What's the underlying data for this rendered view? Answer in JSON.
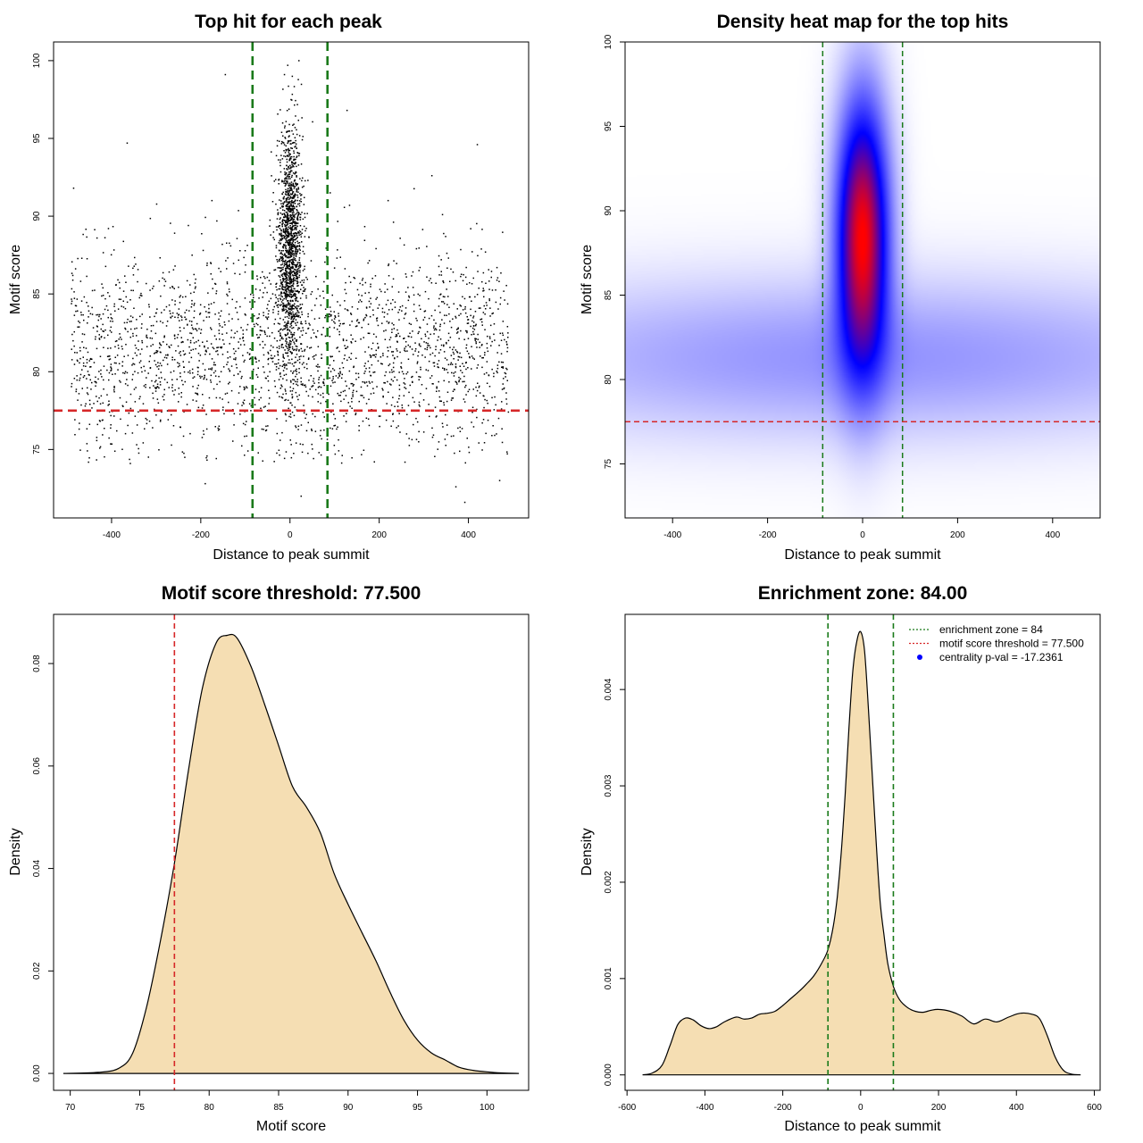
{
  "chart_data": [
    {
      "type": "scatter",
      "title": "Top hit for each peak",
      "xlabel": "Distance to peak summit",
      "ylabel": "Motif score",
      "xlim": [
        -530,
        535
      ],
      "ylim": [
        70.6,
        101.2
      ],
      "xticks": [
        -400,
        -200,
        0,
        200,
        400
      ],
      "yticks": [
        75,
        80,
        85,
        90,
        95,
        100
      ],
      "xtick_labels": [
        "-400",
        "-200",
        "0",
        "200",
        "400"
      ],
      "ytick_labels": [
        "75",
        "80",
        "85",
        "90",
        "95",
        "100"
      ],
      "hlines": [
        {
          "y": 77.5,
          "color": "#d62728",
          "style": "dashed"
        }
      ],
      "vlines": [
        {
          "x": -84,
          "color": "#1a7a1a",
          "style": "dashed"
        },
        {
          "x": 84,
          "color": "#1a7a1a",
          "style": "dashed"
        }
      ],
      "point_color": "#000000",
      "distribution": {
        "background": {
          "x_range": [
            -490,
            490
          ],
          "score_mean": 81.5,
          "score_sd": 3.2,
          "count": 2400
        },
        "central": {
          "x_mean": 0,
          "x_sd": 14,
          "score_mean": 88,
          "score_sd": 3.7,
          "count": 1500
        }
      },
      "outliers": [
        {
          "x": -190,
          "y": 72.8
        },
        {
          "x": 25,
          "y": 72.0
        },
        {
          "x": 372,
          "y": 72.6
        },
        {
          "x": 392,
          "y": 71.6
        },
        {
          "x": 470,
          "y": 73.0
        },
        {
          "x": -485,
          "y": 91.8
        },
        {
          "x": -365,
          "y": 94.7
        },
        {
          "x": -145,
          "y": 99.1
        },
        {
          "x": 20,
          "y": 100.0
        },
        {
          "x": -5,
          "y": 99.7
        },
        {
          "x": 128,
          "y": 96.8
        },
        {
          "x": 420,
          "y": 94.6
        },
        {
          "x": -175,
          "y": 91.0
        },
        {
          "x": 90,
          "y": 91.5
        },
        {
          "x": 318,
          "y": 92.6
        },
        {
          "x": 220,
          "y": 91.0
        }
      ]
    },
    {
      "type": "heatmap",
      "title": "Density heat map for the top hits",
      "xlabel": "Distance to peak summit",
      "ylabel": "Motif score",
      "xlim": [
        -500,
        500
      ],
      "ylim": [
        71.8,
        100
      ],
      "xticks": [
        -400,
        -200,
        0,
        200,
        400
      ],
      "yticks": [
        75,
        80,
        85,
        90,
        95,
        100
      ],
      "xtick_labels": [
        "-400",
        "-200",
        "0",
        "200",
        "400"
      ],
      "ytick_labels": [
        "75",
        "80",
        "85",
        "90",
        "95",
        "100"
      ],
      "color_ramp": [
        "#ffffff",
        "#0000ff",
        "#ff0000"
      ],
      "hlines": [
        {
          "y": 77.5,
          "color": "#d62728",
          "style": "dashed"
        }
      ],
      "vlines": [
        {
          "x": -84,
          "color": "#1a7a1a",
          "style": "dashed"
        },
        {
          "x": 84,
          "color": "#1a7a1a",
          "style": "dashed"
        }
      ],
      "density_components": [
        {
          "x_mean": 0,
          "x_sd": 36,
          "y_mean": 88.5,
          "y_sd": 5.2,
          "weight": 1.0
        },
        {
          "x_mean": 0,
          "x_sd": 560,
          "y_mean": 81.3,
          "y_sd": 3.0,
          "weight": 0.17
        }
      ]
    },
    {
      "type": "area",
      "title": "Motif score threshold: 77.500",
      "xlabel": "Motif score",
      "ylabel": "Density",
      "xlim": [
        68.8,
        103
      ],
      "ylim": [
        -0.0033,
        0.0896
      ],
      "xticks": [
        70,
        75,
        80,
        85,
        90,
        95,
        100
      ],
      "yticks": [
        0.0,
        0.02,
        0.04,
        0.06,
        0.08
      ],
      "xtick_labels": [
        "70",
        "75",
        "80",
        "85",
        "90",
        "95",
        "100"
      ],
      "ytick_labels": [
        "0.00",
        "0.02",
        "0.04",
        "0.06",
        "0.08"
      ],
      "fill_color": "#f5deb3",
      "vlines": [
        {
          "x": 77.5,
          "color": "#d62728",
          "style": "dashed"
        }
      ],
      "x": [
        69.5,
        72,
        73.5,
        74.5,
        75.5,
        76.5,
        77.5,
        78.5,
        79.5,
        80.5,
        81.3,
        82,
        83,
        84,
        85,
        86,
        87,
        88,
        89,
        90,
        91,
        92,
        93,
        94,
        95,
        96,
        97,
        98,
        99,
        100,
        101,
        102.3
      ],
      "values": [
        0.0,
        0.0002,
        0.001,
        0.004,
        0.013,
        0.026,
        0.041,
        0.059,
        0.075,
        0.084,
        0.0855,
        0.085,
        0.0795,
        0.072,
        0.064,
        0.056,
        0.052,
        0.047,
        0.039,
        0.033,
        0.0275,
        0.022,
        0.016,
        0.0105,
        0.0065,
        0.004,
        0.0026,
        0.0012,
        0.0006,
        0.0003,
        0.0001,
        0.0
      ]
    },
    {
      "type": "area",
      "title": "Enrichment zone: 84.00",
      "xlabel": "Distance to peak summit",
      "ylabel": "Density",
      "xlim": [
        -605,
        615
      ],
      "ylim": [
        -0.00016,
        0.00478
      ],
      "xticks": [
        -600,
        -400,
        -200,
        0,
        200,
        400,
        600
      ],
      "yticks": [
        0.0,
        0.001,
        0.002,
        0.003,
        0.004
      ],
      "xtick_labels": [
        "-600",
        "-400",
        "-200",
        "0",
        "200",
        "400",
        "600"
      ],
      "ytick_labels": [
        "0.000",
        "0.001",
        "0.002",
        "0.003",
        "0.004"
      ],
      "fill_color": "#f5deb3",
      "vlines": [
        {
          "x": -84,
          "color": "#1a7a1a",
          "style": "dashed"
        },
        {
          "x": 84,
          "color": "#1a7a1a",
          "style": "dashed"
        }
      ],
      "x": [
        -560,
        -535,
        -510,
        -490,
        -470,
        -450,
        -430,
        -410,
        -390,
        -370,
        -350,
        -320,
        -300,
        -280,
        -260,
        -240,
        -220,
        -200,
        -180,
        -160,
        -140,
        -120,
        -100,
        -84,
        -70,
        -60,
        -50,
        -40,
        -30,
        -20,
        -10,
        0,
        10,
        20,
        30,
        40,
        50,
        60,
        70,
        84,
        100,
        120,
        140,
        160,
        180,
        200,
        230,
        260,
        290,
        320,
        350,
        380,
        410,
        440,
        460,
        480,
        500,
        520,
        540,
        565
      ],
      "values": [
        0.0,
        2e-05,
        0.0001,
        0.0003,
        0.00052,
        0.00059,
        0.00057,
        0.00051,
        0.00048,
        0.0005,
        0.00055,
        0.0006,
        0.00058,
        0.00059,
        0.00063,
        0.00064,
        0.00066,
        0.00072,
        0.00079,
        0.00086,
        0.00094,
        0.00103,
        0.00116,
        0.0013,
        0.00155,
        0.00185,
        0.0023,
        0.0029,
        0.0036,
        0.0042,
        0.0045,
        0.0046,
        0.0044,
        0.0038,
        0.0031,
        0.0024,
        0.0018,
        0.00145,
        0.00115,
        0.00092,
        0.00078,
        0.0007,
        0.00066,
        0.00065,
        0.00067,
        0.00068,
        0.00066,
        0.00061,
        0.00053,
        0.00058,
        0.00055,
        0.0006,
        0.00064,
        0.00063,
        0.00058,
        0.0004,
        0.00018,
        5e-05,
        1e-05,
        0.0
      ],
      "legend": [
        {
          "label": "enrichment zone = 84",
          "color": "#1a7a1a",
          "marker": "line"
        },
        {
          "label": "motif score threshold = 77.500",
          "color": "#d62728",
          "marker": "line"
        },
        {
          "label": "centrality p-val = -17.2361",
          "color": "#0000ff",
          "marker": "point"
        }
      ]
    }
  ]
}
